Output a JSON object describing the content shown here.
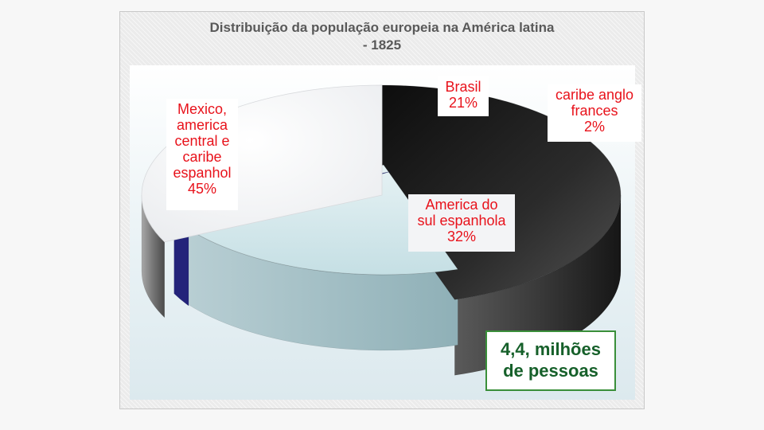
{
  "chart_data": {
    "type": "pie",
    "title": "Distribuição da população europeia na América latina - 1825",
    "title_lines": [
      "Distribuição da população europeia na América latina",
      "- 1825"
    ],
    "categories": [
      "Mexico, america central e caribe espanhol",
      "Brasil",
      "caribe anglo frances",
      "America do sul espanhola"
    ],
    "values": [
      45,
      21,
      2,
      32
    ],
    "unit": "%",
    "colors": [
      "#2a2a2a",
      "#cfe6ea",
      "#3a3aa8",
      "#f4f5f7"
    ],
    "labels": [
      {
        "lines": [
          "Mexico,",
          "america",
          "central e",
          "caribe",
          "espanhol",
          "45%"
        ]
      },
      {
        "lines": [
          "Brasil",
          "21%"
        ]
      },
      {
        "lines": [
          "caribe anglo",
          "frances",
          "2%"
        ]
      },
      {
        "lines": [
          "America do",
          "sul espanhola",
          "32%"
        ]
      }
    ],
    "style": "3d-exploded"
  },
  "note": {
    "lines": [
      "4,4, milhões",
      "de pessoas"
    ]
  }
}
